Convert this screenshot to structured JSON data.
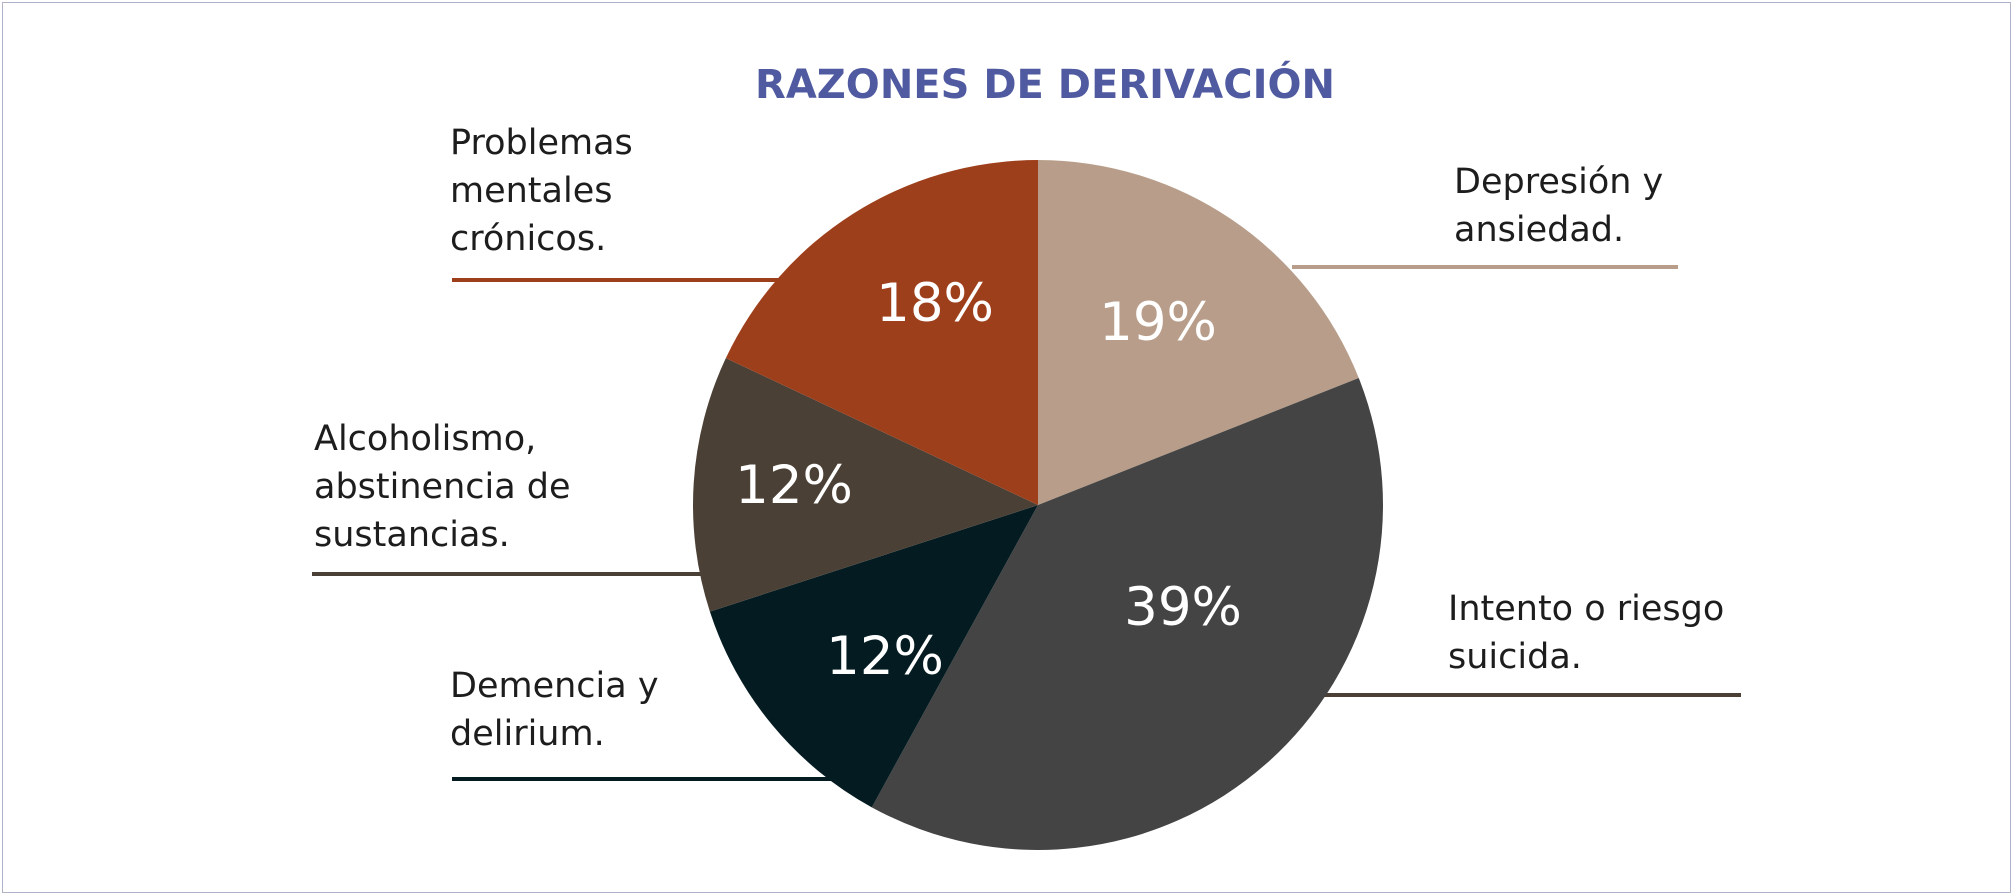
{
  "chart_data": {
    "type": "pie",
    "title": "RAZONES DE DERIVACIÓN",
    "start": "12 o'clock, clockwise",
    "slices": [
      {
        "label": [
          "Depresión y",
          "ansiedad."
        ],
        "value": 19,
        "display": "19%",
        "color": "#b89e8a",
        "line_color": "#b89e8a"
      },
      {
        "label": [
          "Intento o riesgo",
          "suicida."
        ],
        "value": 39,
        "display": "39%",
        "color": "#444444",
        "line_color": "#4b4036"
      },
      {
        "label": [
          "Demencia y",
          "delirium."
        ],
        "value": 12,
        "display": "12%",
        "color": "#041c21",
        "line_color": "#041c21"
      },
      {
        "label": [
          "Alcoholismo,",
          "abstinencia de",
          "sustancias."
        ],
        "value": 12,
        "display": "12%",
        "color": "#4b4035",
        "line_color": "#4b4035"
      },
      {
        "label": [
          "Problemas",
          "mentales",
          "crónicos."
        ],
        "value": 18,
        "display": "18%",
        "color": "#9e3f1c",
        "line_color": "#9e3f1c"
      }
    ]
  }
}
